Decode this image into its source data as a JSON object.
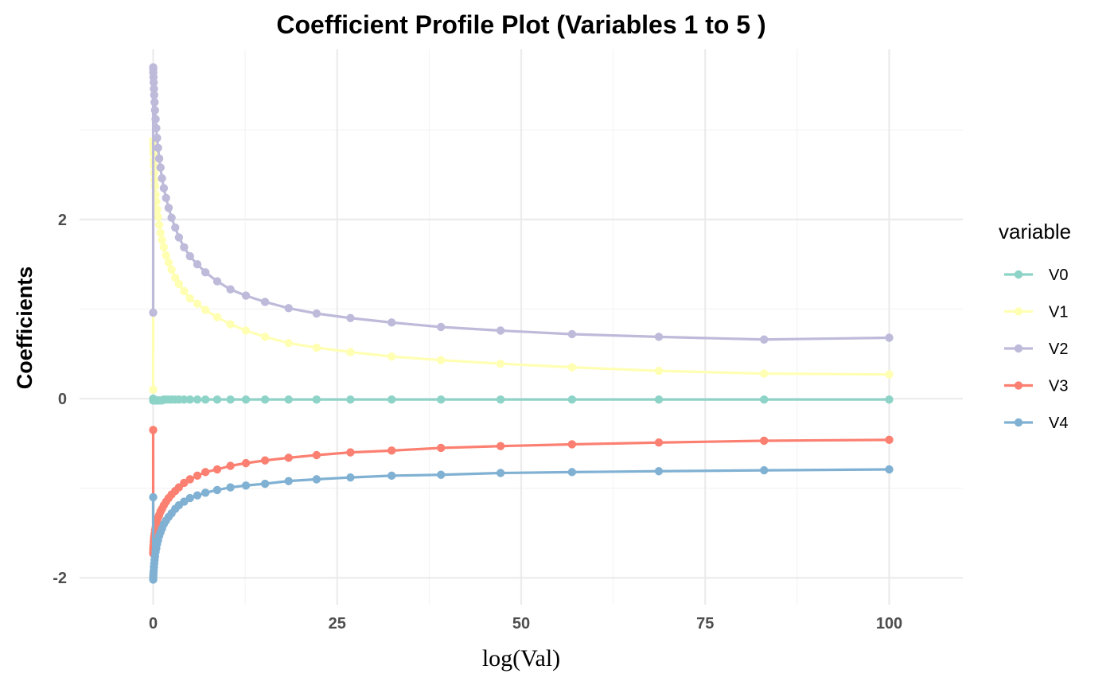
{
  "chart_data": {
    "type": "line",
    "title": "Coefficient Profile Plot (Variables 1 to 5 )",
    "xlabel": "log(Val)",
    "ylabel": "Coefficients",
    "xlim": [
      -10,
      110
    ],
    "ylim": [
      -2.3,
      3.9
    ],
    "x_ticks": [
      0,
      25,
      50,
      75,
      100
    ],
    "x_tick_labels": [
      "0",
      "25",
      "50",
      "75",
      "100"
    ],
    "y_ticks": [
      -2,
      0,
      2
    ],
    "y_tick_labels": [
      "-2",
      "0",
      "2"
    ],
    "grid": true,
    "legend": {
      "title": "variable",
      "position": "right"
    },
    "x": [
      0,
      0.005,
      0.01,
      0.02,
      0.04,
      0.07,
      0.1,
      0.14,
      0.19,
      0.25,
      0.33,
      0.42,
      0.53,
      0.66,
      0.82,
      1.0,
      1.2,
      1.45,
      1.75,
      2.1,
      2.5,
      3.0,
      3.5,
      4.2,
      5.0,
      6.0,
      7.1,
      8.7,
      10.5,
      12.6,
      15.2,
      18.4,
      22.2,
      26.8,
      32.4,
      39.1,
      47.2,
      56.9,
      68.7,
      83.0,
      100.0
    ],
    "series": [
      {
        "name": "V0",
        "color": "#8DD3C7",
        "values": [
          0,
          -0.02,
          -0.02,
          -0.02,
          -0.02,
          -0.02,
          -0.02,
          -0.02,
          -0.02,
          -0.02,
          -0.02,
          -0.02,
          -0.02,
          -0.02,
          -0.02,
          -0.02,
          -0.02,
          -0.01,
          -0.01,
          -0.01,
          -0.01,
          -0.01,
          -0.01,
          -0.01,
          -0.01,
          -0.01,
          -0.01,
          -0.01,
          -0.01,
          -0.01,
          -0.01,
          -0.01,
          -0.01,
          -0.01,
          -0.01,
          -0.01,
          -0.01,
          -0.01,
          -0.01,
          -0.01,
          -0.01
        ]
      },
      {
        "name": "V1",
        "color": "#FFFFB3",
        "values": [
          0.1,
          2.88,
          2.84,
          2.8,
          2.74,
          2.66,
          2.6,
          2.52,
          2.44,
          2.37,
          2.28,
          2.2,
          2.11,
          2.03,
          1.94,
          1.85,
          1.77,
          1.69,
          1.6,
          1.52,
          1.44,
          1.35,
          1.28,
          1.2,
          1.12,
          1.06,
          0.99,
          0.91,
          0.83,
          0.76,
          0.69,
          0.62,
          0.57,
          0.52,
          0.47,
          0.43,
          0.39,
          0.35,
          0.31,
          0.28,
          0.27
        ]
      },
      {
        "name": "V2",
        "color": "#BEBADA",
        "values": [
          0.96,
          3.7,
          3.68,
          3.64,
          3.59,
          3.53,
          3.46,
          3.39,
          3.31,
          3.22,
          3.12,
          3.02,
          2.91,
          2.8,
          2.68,
          2.58,
          2.46,
          2.35,
          2.24,
          2.13,
          2.02,
          1.91,
          1.8,
          1.69,
          1.59,
          1.5,
          1.41,
          1.31,
          1.22,
          1.15,
          1.08,
          1.01,
          0.95,
          0.9,
          0.85,
          0.8,
          0.76,
          0.72,
          0.69,
          0.66,
          0.68
        ]
      },
      {
        "name": "V3",
        "color": "#FB8072",
        "values": [
          -0.35,
          -1.73,
          -1.7,
          -1.67,
          -1.64,
          -1.6,
          -1.57,
          -1.54,
          -1.51,
          -1.47,
          -1.44,
          -1.4,
          -1.37,
          -1.33,
          -1.3,
          -1.26,
          -1.23,
          -1.19,
          -1.15,
          -1.11,
          -1.07,
          -1.03,
          -0.99,
          -0.94,
          -0.9,
          -0.86,
          -0.82,
          -0.79,
          -0.75,
          -0.72,
          -0.69,
          -0.66,
          -0.63,
          -0.6,
          -0.58,
          -0.55,
          -0.53,
          -0.51,
          -0.49,
          -0.47,
          -0.46
        ]
      },
      {
        "name": "V4",
        "color": "#80B1D3",
        "values": [
          -1.1,
          -2.02,
          -2.0,
          -1.98,
          -1.95,
          -1.92,
          -1.88,
          -1.84,
          -1.8,
          -1.76,
          -1.71,
          -1.67,
          -1.62,
          -1.58,
          -1.53,
          -1.49,
          -1.45,
          -1.4,
          -1.36,
          -1.32,
          -1.28,
          -1.23,
          -1.19,
          -1.15,
          -1.11,
          -1.08,
          -1.05,
          -1.02,
          -0.99,
          -0.97,
          -0.95,
          -0.92,
          -0.9,
          -0.88,
          -0.86,
          -0.85,
          -0.83,
          -0.82,
          -0.81,
          -0.8,
          -0.79
        ]
      }
    ]
  }
}
